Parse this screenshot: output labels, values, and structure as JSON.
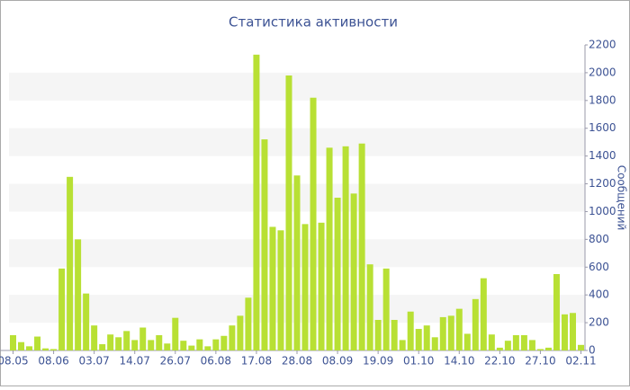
{
  "chart_data": {
    "type": "bar",
    "title": "Статистика активности",
    "y_axis_label": "Сообщений",
    "categories": [
      "08.05",
      null,
      null,
      null,
      null,
      "08.06",
      null,
      null,
      null,
      null,
      "03.07",
      null,
      null,
      null,
      null,
      "14.07",
      null,
      null,
      null,
      null,
      "26.07",
      null,
      null,
      null,
      null,
      "06.08",
      null,
      null,
      null,
      null,
      "17.08",
      null,
      null,
      null,
      null,
      "28.08",
      null,
      null,
      null,
      null,
      "08.09",
      null,
      null,
      null,
      null,
      "19.09",
      null,
      null,
      null,
      null,
      "01.10",
      null,
      null,
      null,
      null,
      "14.10",
      null,
      null,
      null,
      null,
      "22.10",
      null,
      null,
      null,
      null,
      "27.10",
      null,
      null,
      null,
      null,
      "02.11"
    ],
    "values": [
      110,
      60,
      30,
      100,
      15,
      10,
      590,
      1250,
      800,
      410,
      180,
      45,
      115,
      95,
      140,
      75,
      165,
      75,
      110,
      50,
      235,
      70,
      35,
      80,
      30,
      80,
      105,
      180,
      250,
      380,
      2130,
      1520,
      890,
      865,
      1980,
      1260,
      910,
      1820,
      920,
      1460,
      1100,
      1470,
      1130,
      1490,
      620,
      220,
      590,
      220,
      75,
      280,
      155,
      180,
      95,
      240,
      250,
      300,
      120,
      370,
      520,
      115,
      20,
      70,
      110,
      110,
      75,
      10,
      20,
      550,
      260,
      270,
      40
    ],
    "color": "#b8e034",
    "ylim": [
      0,
      2200
    ],
    "yticks": [
      0,
      200,
      400,
      600,
      800,
      1000,
      1200,
      1400,
      1600,
      1800,
      2000,
      2200
    ],
    "grid": "bands",
    "y_axis_side": "right"
  }
}
